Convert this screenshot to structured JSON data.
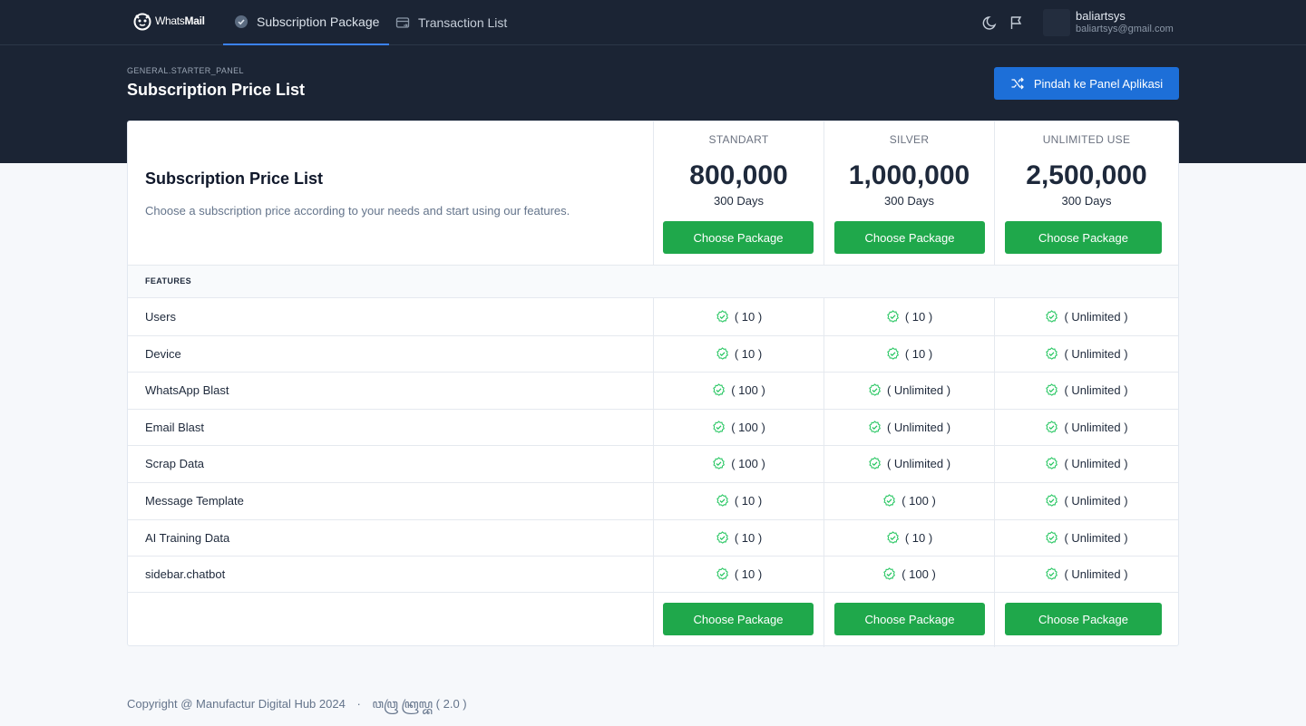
{
  "header": {
    "logo": {
      "text_light": "Whats",
      "text_bold": "Mail"
    },
    "tabs": [
      {
        "label": "Subscription Package",
        "icon": "badge-check-icon",
        "active": true
      },
      {
        "label": "Transaction List",
        "icon": "receipt-icon",
        "active": false
      }
    ],
    "user": {
      "name": "baliartsys",
      "email": "baliartsys@gmail.com"
    }
  },
  "hero": {
    "breadcrumb": "GENERAL.STARTER_PANEL",
    "title": "Subscription Price List",
    "switch_button": "Pindah ke Panel Aplikasi"
  },
  "pricing": {
    "title": "Subscription Price List",
    "description": "Choose a subscription price according to your needs and start using our features.",
    "features_label": "FEATURES",
    "choose_label": "Choose Package",
    "plans": [
      {
        "name": "STANDART",
        "price": "800,000",
        "duration": "300 Days"
      },
      {
        "name": "SILVER",
        "price": "1,000,000",
        "duration": "300 Days"
      },
      {
        "name": "UNLIMITED USE",
        "price": "2,500,000",
        "duration": "300 Days"
      }
    ],
    "features": [
      {
        "name": "Users",
        "values": [
          "( 10 )",
          "( 10 )",
          "( Unlimited )"
        ]
      },
      {
        "name": "Device",
        "values": [
          "( 10 )",
          "( 10 )",
          "( Unlimited )"
        ]
      },
      {
        "name": "WhatsApp Blast",
        "values": [
          "( 100 )",
          "( Unlimited )",
          "( Unlimited )"
        ]
      },
      {
        "name": "Email Blast",
        "values": [
          "( 100 )",
          "( Unlimited )",
          "( Unlimited )"
        ]
      },
      {
        "name": "Scrap Data",
        "values": [
          "( 100 )",
          "( Unlimited )",
          "( Unlimited )"
        ]
      },
      {
        "name": "Message Template",
        "values": [
          "( 10 )",
          "( 100 )",
          "( Unlimited )"
        ]
      },
      {
        "name": "AI Training Data",
        "values": [
          "( 10 )",
          "( 10 )",
          "( Unlimited )"
        ]
      },
      {
        "name": "sidebar.chatbot",
        "values": [
          "( 10 )",
          "( 100 )",
          "( Unlimited )"
        ]
      }
    ]
  },
  "footer": {
    "copyright": "Copyright @ Manufactur Digital Hub 2024",
    "separator": "·",
    "version_label": "ꦮꦮꦿ ꦏꦿꦭ꧀ꦧ",
    "version": "( 2.0 )"
  },
  "colors": {
    "header_bg": "#1b2434",
    "primary": "#1d6fd8",
    "success": "#1fa84b",
    "check": "#22c55e"
  }
}
